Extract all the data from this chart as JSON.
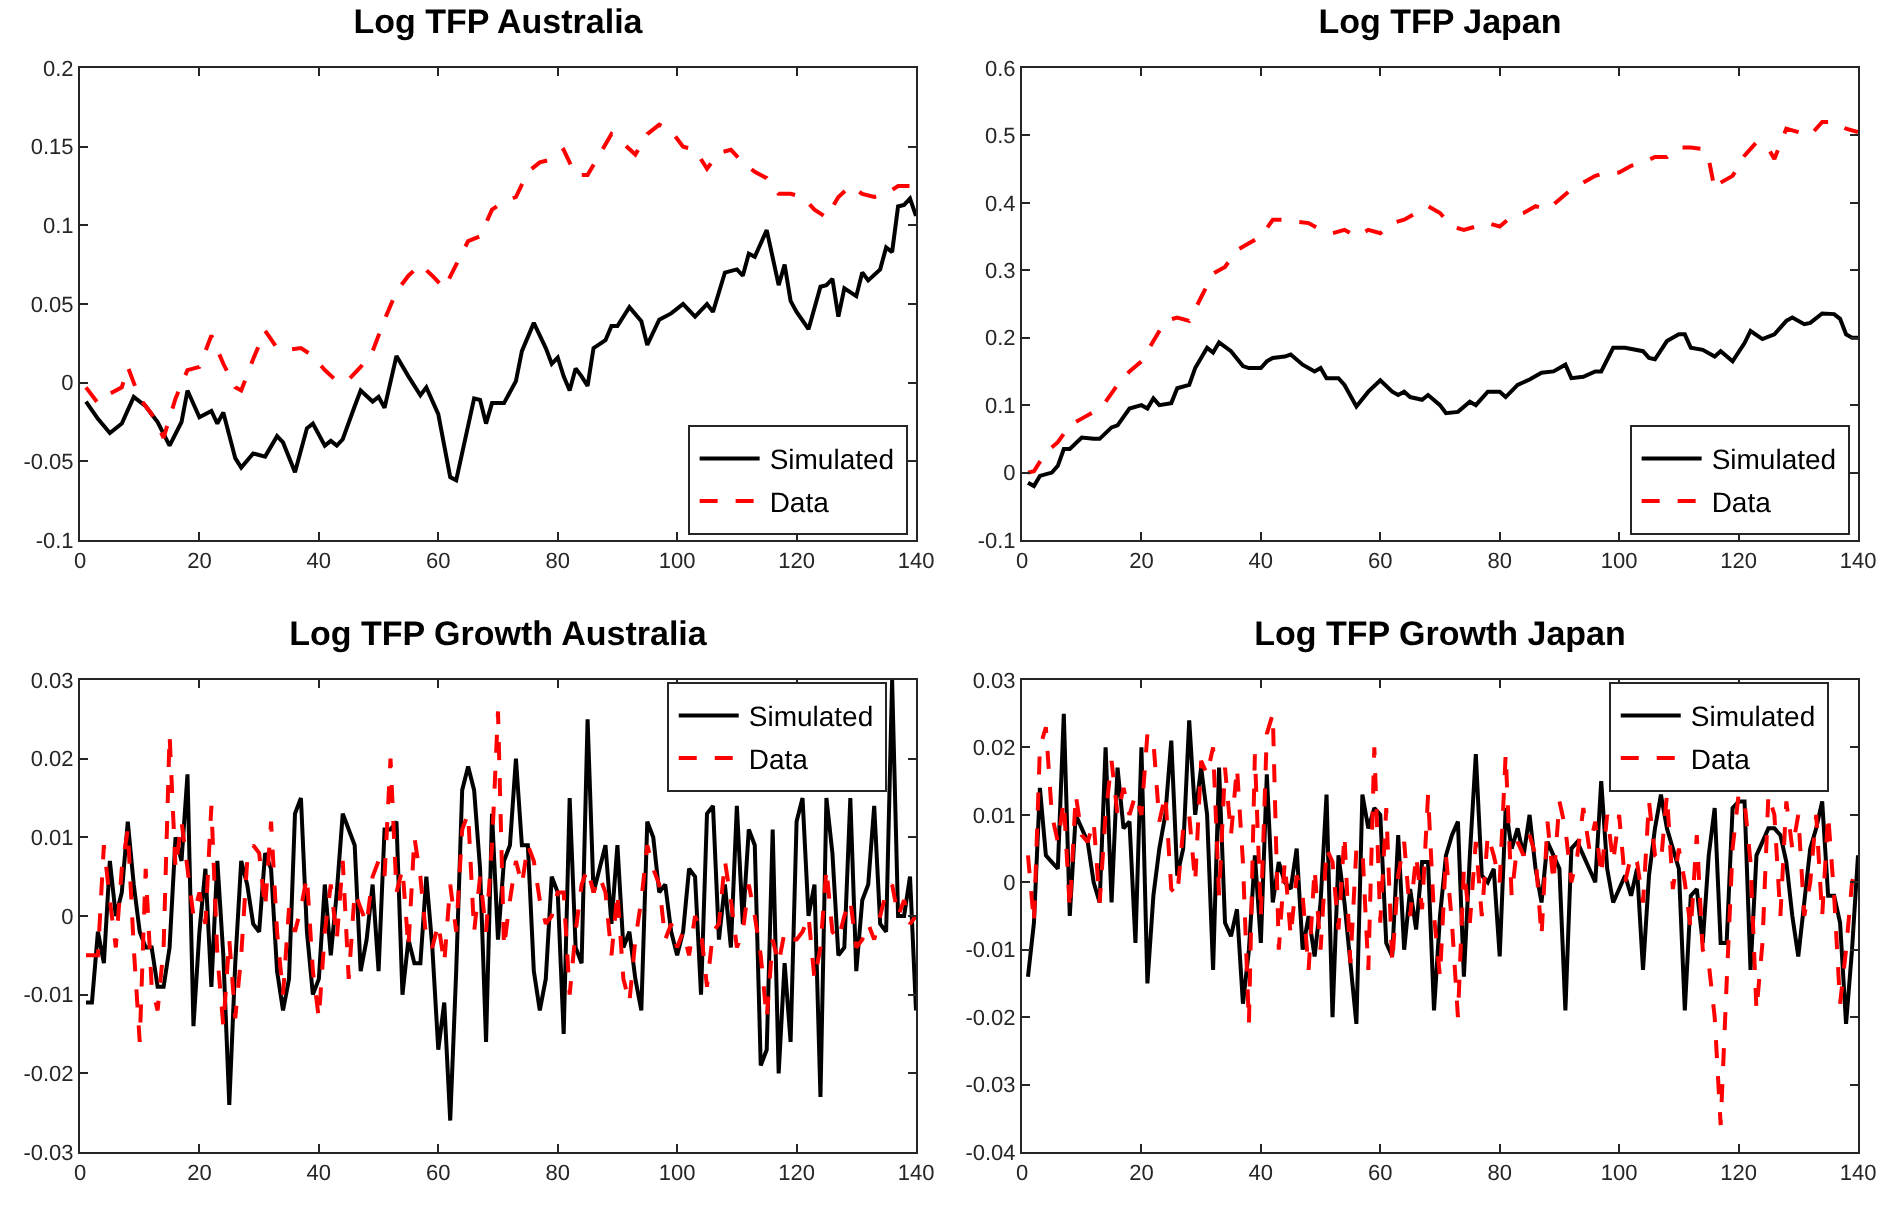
{
  "chart_data": [
    {
      "type": "line",
      "title": "Log TFP Australia",
      "xlim": [
        0,
        140
      ],
      "xticks": [
        0,
        20,
        40,
        60,
        80,
        100,
        120,
        140
      ],
      "ylim": [
        -0.1,
        0.2
      ],
      "yticks": [
        -0.1,
        -0.05,
        0,
        0.05,
        0.1,
        0.15,
        0.2
      ],
      "grid": false,
      "legend": "bottom right",
      "series": [
        {
          "name": "Simulated",
          "color": "#000000",
          "line_style": "solid",
          "x": [
            1,
            3,
            5,
            7,
            9,
            11,
            13,
            15,
            17,
            18,
            20,
            22,
            23,
            24,
            26,
            27,
            29,
            31,
            33,
            34,
            36,
            38,
            39,
            41,
            42,
            43,
            44,
            46,
            47,
            49,
            50,
            51,
            53,
            55,
            57,
            58,
            60,
            62,
            63,
            66,
            67,
            68,
            69,
            71,
            73,
            74,
            76,
            78,
            79,
            80,
            81,
            82,
            83,
            84,
            85,
            86,
            88,
            89,
            90,
            92,
            94,
            95,
            97,
            99,
            101,
            103,
            105,
            106,
            108,
            110,
            111,
            112,
            113,
            115,
            117,
            118,
            119,
            120,
            122,
            124,
            125,
            126,
            127,
            128,
            130,
            131,
            132,
            134,
            135,
            136,
            137,
            138,
            139,
            140
          ],
          "values": [
            -0.012,
            -0.023,
            -0.032,
            -0.026,
            -0.009,
            -0.015,
            -0.025,
            -0.04,
            -0.025,
            -0.005,
            -0.022,
            -0.018,
            -0.026,
            -0.019,
            -0.048,
            -0.054,
            -0.045,
            -0.047,
            -0.034,
            -0.038,
            -0.057,
            -0.029,
            -0.026,
            -0.04,
            -0.037,
            -0.04,
            -0.036,
            -0.015,
            -0.005,
            -0.012,
            -0.009,
            -0.016,
            0.017,
            0.004,
            -0.008,
            -0.003,
            -0.02,
            -0.06,
            -0.062,
            -0.01,
            -0.011,
            -0.026,
            -0.013,
            -0.013,
            0.001,
            0.02,
            0.038,
            0.022,
            0.012,
            0.016,
            0.004,
            -0.005,
            0.009,
            0.004,
            -0.002,
            0.022,
            0.027,
            0.036,
            0.036,
            0.048,
            0.039,
            0.024,
            0.04,
            0.044,
            0.05,
            0.042,
            0.05,
            0.045,
            0.07,
            0.072,
            0.068,
            0.082,
            0.08,
            0.097,
            0.062,
            0.075,
            0.052,
            0.045,
            0.034,
            0.061,
            0.062,
            0.066,
            0.042,
            0.06,
            0.055,
            0.07,
            0.065,
            0.072,
            0.086,
            0.083,
            0.112,
            0.113,
            0.117,
            0.106
          ]
        },
        {
          "name": "Data",
          "color": "#ff0000",
          "line_style": "dashed",
          "x": [
            1,
            3,
            5,
            7,
            8,
            10,
            12,
            14,
            16,
            18,
            20,
            22,
            24,
            26,
            27,
            29,
            31,
            33,
            35,
            37,
            39,
            41,
            43,
            45,
            47,
            49,
            51,
            53,
            55,
            57,
            59,
            61,
            63,
            65,
            67,
            69,
            71,
            73,
            75,
            77,
            79,
            81,
            83,
            85,
            87,
            89,
            91,
            93,
            95,
            97,
            99,
            101,
            103,
            105,
            107,
            109,
            111,
            113,
            115,
            117,
            119,
            121,
            123,
            125,
            127,
            129,
            131,
            133,
            135,
            137,
            140
          ],
          "values": [
            -0.003,
            -0.013,
            -0.007,
            -0.003,
            0.01,
            -0.01,
            -0.02,
            -0.035,
            -0.01,
            0.008,
            0.01,
            0.03,
            0.012,
            -0.003,
            -0.005,
            0.015,
            0.033,
            0.022,
            0.021,
            0.022,
            0.017,
            0.008,
            0.001,
            0.002,
            0.01,
            0.02,
            0.04,
            0.058,
            0.068,
            0.075,
            0.068,
            0.06,
            0.075,
            0.09,
            0.093,
            0.11,
            0.115,
            0.118,
            0.134,
            0.14,
            0.142,
            0.148,
            0.132,
            0.132,
            0.145,
            0.158,
            0.152,
            0.145,
            0.158,
            0.164,
            0.16,
            0.15,
            0.148,
            0.136,
            0.146,
            0.148,
            0.14,
            0.134,
            0.13,
            0.12,
            0.12,
            0.118,
            0.11,
            0.105,
            0.118,
            0.125,
            0.12,
            0.118,
            0.12,
            0.125,
            0.125
          ]
        }
      ]
    },
    {
      "type": "line",
      "title": "Log TFP Japan",
      "xlim": [
        0,
        140
      ],
      "xticks": [
        0,
        20,
        40,
        60,
        80,
        100,
        120,
        140
      ],
      "ylim": [
        -0.1,
        0.6
      ],
      "yticks": [
        -0.1,
        0,
        0.1,
        0.2,
        0.3,
        0.4,
        0.5,
        0.6
      ],
      "grid": false,
      "legend": "bottom right",
      "series": [
        {
          "name": "Simulated",
          "color": "#000000",
          "line_style": "solid",
          "x": [
            1,
            2,
            3,
            5,
            6,
            7,
            8,
            10,
            12,
            13,
            15,
            16,
            18,
            20,
            21,
            22,
            23,
            25,
            26,
            28,
            29,
            31,
            32,
            33,
            35,
            37,
            38,
            40,
            41,
            42,
            44,
            45,
            47,
            49,
            50,
            51,
            53,
            54,
            56,
            58,
            60,
            62,
            63,
            64,
            65,
            67,
            68,
            70,
            71,
            73,
            75,
            76,
            78,
            80,
            81,
            83,
            85,
            87,
            89,
            91,
            92,
            94,
            96,
            97,
            99,
            101,
            104,
            105,
            106,
            108,
            110,
            111,
            112,
            114,
            116,
            117,
            119,
            121,
            122,
            124,
            126,
            128,
            129,
            131,
            132,
            134,
            136,
            137,
            138,
            139,
            140
          ],
          "values": [
            -0.015,
            -0.02,
            -0.005,
            0.0,
            0.01,
            0.035,
            0.035,
            0.052,
            0.05,
            0.05,
            0.067,
            0.07,
            0.095,
            0.1,
            0.095,
            0.11,
            0.1,
            0.103,
            0.125,
            0.13,
            0.155,
            0.185,
            0.178,
            0.193,
            0.18,
            0.158,
            0.155,
            0.155,
            0.165,
            0.17,
            0.172,
            0.175,
            0.16,
            0.15,
            0.155,
            0.14,
            0.14,
            0.13,
            0.098,
            0.12,
            0.137,
            0.12,
            0.115,
            0.12,
            0.112,
            0.108,
            0.115,
            0.1,
            0.088,
            0.09,
            0.105,
            0.1,
            0.12,
            0.12,
            0.112,
            0.13,
            0.138,
            0.148,
            0.15,
            0.16,
            0.14,
            0.142,
            0.15,
            0.15,
            0.185,
            0.185,
            0.18,
            0.17,
            0.168,
            0.195,
            0.205,
            0.205,
            0.185,
            0.182,
            0.172,
            0.18,
            0.165,
            0.192,
            0.21,
            0.198,
            0.205,
            0.225,
            0.23,
            0.22,
            0.222,
            0.236,
            0.235,
            0.228,
            0.205,
            0.2,
            0.2
          ]
        },
        {
          "name": "Data",
          "color": "#ff0000",
          "line_style": "dashed",
          "x": [
            1,
            2,
            4,
            6,
            8,
            10,
            12,
            14,
            16,
            18,
            20,
            22,
            24,
            26,
            28,
            30,
            32,
            34,
            36,
            38,
            40,
            42,
            44,
            46,
            48,
            50,
            52,
            54,
            56,
            58,
            60,
            62,
            64,
            66,
            68,
            70,
            72,
            74,
            76,
            78,
            80,
            82,
            84,
            86,
            88,
            90,
            92,
            94,
            96,
            98,
            100,
            102,
            104,
            106,
            108,
            110,
            112,
            114,
            115,
            116,
            117,
            119,
            121,
            123,
            125,
            126,
            128,
            130,
            132,
            134,
            136,
            138,
            140
          ],
          "values": [
            0.0,
            0.002,
            0.03,
            0.045,
            0.07,
            0.08,
            0.09,
            0.105,
            0.13,
            0.15,
            0.165,
            0.195,
            0.225,
            0.23,
            0.225,
            0.26,
            0.295,
            0.305,
            0.33,
            0.34,
            0.35,
            0.375,
            0.375,
            0.372,
            0.37,
            0.36,
            0.355,
            0.36,
            0.35,
            0.36,
            0.355,
            0.37,
            0.375,
            0.385,
            0.395,
            0.385,
            0.365,
            0.36,
            0.365,
            0.37,
            0.365,
            0.38,
            0.385,
            0.395,
            0.39,
            0.405,
            0.42,
            0.43,
            0.44,
            0.445,
            0.445,
            0.455,
            0.46,
            0.468,
            0.468,
            0.482,
            0.482,
            0.48,
            0.465,
            0.42,
            0.43,
            0.44,
            0.47,
            0.49,
            0.48,
            0.465,
            0.51,
            0.505,
            0.5,
            0.52,
            0.52,
            0.51,
            0.505
          ]
        }
      ]
    },
    {
      "type": "line",
      "title": "Log TFP Growth Australia",
      "xlim": [
        0,
        140
      ],
      "xticks": [
        0,
        20,
        40,
        60,
        80,
        100,
        120,
        140
      ],
      "ylim": [
        -0.03,
        0.03
      ],
      "yticks": [
        -0.03,
        -0.02,
        -0.01,
        0,
        0.01,
        0.02,
        0.03
      ],
      "grid": false,
      "legend": "top right",
      "series": [
        {
          "name": "Simulated",
          "color": "#000000",
          "line_style": "solid",
          "x": [
            1,
            2,
            3,
            4,
            5,
            6,
            7,
            8,
            9,
            10,
            11,
            12,
            13,
            14,
            15,
            16,
            17,
            18,
            19,
            20,
            21,
            22,
            23,
            24,
            25,
            26,
            27,
            28,
            29,
            30,
            31,
            32,
            33,
            34,
            35,
            36,
            37,
            38,
            39,
            40,
            41,
            42,
            43,
            44,
            45,
            46,
            47,
            48,
            49,
            50,
            51,
            52,
            53,
            54,
            55,
            56,
            57,
            58,
            59,
            60,
            61,
            62,
            63,
            64,
            65,
            66,
            67,
            68,
            69,
            70,
            71,
            72,
            73,
            74,
            75,
            76,
            77,
            78,
            79,
            80,
            81,
            82,
            83,
            84,
            85,
            86,
            87,
            88,
            89,
            90,
            91,
            92,
            93,
            94,
            95,
            96,
            97,
            98,
            99,
            100,
            101,
            102,
            103,
            104,
            105,
            106,
            107,
            108,
            109,
            110,
            111,
            112,
            113,
            114,
            115,
            116,
            117,
            118,
            119,
            120,
            121,
            122,
            123,
            124,
            125,
            126,
            127,
            128,
            129,
            130,
            131,
            132,
            133,
            134,
            135,
            136,
            137,
            138,
            139,
            140
          ],
          "values": [
            -0.011,
            -0.011,
            -0.002,
            -0.006,
            0.007,
            0.0,
            0.003,
            0.012,
            0.004,
            -0.002,
            -0.004,
            -0.004,
            -0.009,
            -0.009,
            -0.004,
            0.01,
            0.007,
            0.018,
            -0.014,
            -0.002,
            0.006,
            -0.009,
            0.007,
            -0.005,
            -0.024,
            -0.006,
            0.007,
            0.004,
            -0.001,
            -0.002,
            0.008,
            0.006,
            -0.007,
            -0.012,
            -0.008,
            0.013,
            0.015,
            -0.002,
            -0.01,
            -0.008,
            0.004,
            -0.005,
            0.003,
            0.013,
            0.011,
            0.009,
            -0.007,
            -0.003,
            0.004,
            -0.007,
            0.011,
            0.011,
            0.012,
            -0.01,
            -0.003,
            -0.006,
            -0.006,
            0.005,
            -0.004,
            -0.017,
            -0.011,
            -0.026,
            -0.007,
            0.016,
            0.019,
            0.016,
            0.006,
            -0.016,
            0.013,
            -0.003,
            0.007,
            0.009,
            0.02,
            0.009,
            0.009,
            -0.007,
            -0.012,
            -0.008,
            0.005,
            0.003,
            -0.015,
            0.015,
            -0.004,
            -0.006,
            0.025,
            0.003,
            0.006,
            0.009,
            -0.001,
            0.009,
            -0.004,
            -0.002,
            -0.008,
            -0.012,
            0.012,
            0.01,
            0.003,
            0.004,
            -0.002,
            -0.005,
            -0.002,
            0.006,
            0.005,
            -0.01,
            0.013,
            0.014,
            -0.003,
            0.004,
            -0.004,
            0.014,
            -0.001,
            0.011,
            0.009,
            -0.019,
            -0.017,
            0.011,
            -0.02,
            -0.006,
            -0.016,
            0.012,
            0.015,
            0.0,
            0.004,
            -0.023,
            0.015,
            0.008,
            -0.005,
            -0.004,
            0.015,
            -0.007,
            0.002,
            0.004,
            0.014,
            -0.001,
            -0.002,
            0.03,
            0.0,
            0.0,
            0.005,
            -0.012
          ]
        },
        {
          "name": "Data",
          "color": "#ff0000",
          "line_style": "dashed",
          "x": [
            1,
            2,
            3,
            4,
            5,
            6,
            7,
            8,
            9,
            10,
            11,
            12,
            13,
            14,
            15,
            16,
            17,
            18,
            19,
            20,
            21,
            22,
            23,
            24,
            25,
            26,
            27,
            28,
            29,
            30,
            31,
            32,
            33,
            34,
            35,
            36,
            37,
            38,
            39,
            40,
            41,
            42,
            43,
            44,
            45,
            46,
            47,
            48,
            49,
            50,
            51,
            52,
            53,
            54,
            55,
            56,
            57,
            58,
            59,
            60,
            61,
            62,
            63,
            64,
            65,
            66,
            67,
            68,
            69,
            70,
            71,
            72,
            73,
            74,
            75,
            76,
            77,
            78,
            79,
            80,
            81,
            82,
            83,
            84,
            85,
            86,
            87,
            88,
            89,
            90,
            91,
            92,
            93,
            94,
            95,
            96,
            97,
            98,
            99,
            100,
            101,
            102,
            103,
            104,
            105,
            106,
            107,
            108,
            109,
            110,
            111,
            112,
            113,
            114,
            115,
            116,
            117,
            118,
            119,
            120,
            121,
            122,
            123,
            124,
            125,
            126,
            127,
            128,
            129,
            130,
            131,
            132,
            133,
            134,
            135,
            136,
            137,
            138,
            139,
            140
          ],
          "values": [
            -0.005,
            -0.005,
            -0.005,
            0.009,
            0.002,
            -0.004,
            0.006,
            0.011,
            -0.004,
            -0.016,
            0.006,
            -0.009,
            -0.012,
            -0.004,
            0.023,
            0.006,
            0.012,
            0.006,
            0.0,
            0.003,
            -0.001,
            0.014,
            -0.005,
            -0.014,
            -0.003,
            -0.013,
            -0.005,
            0.007,
            0.009,
            0.008,
            0.001,
            0.012,
            -0.002,
            -0.01,
            0.001,
            -0.002,
            0.001,
            0.005,
            -0.007,
            -0.013,
            -0.002,
            0.004,
            -0.003,
            0.007,
            -0.008,
            0.003,
            0.001,
            -0.001,
            0.005,
            0.007,
            0.005,
            0.02,
            0.003,
            0.006,
            -0.004,
            0.01,
            0.005,
            -0.003,
            -0.004,
            -0.001,
            -0.006,
            0.004,
            -0.002,
            0.011,
            0.013,
            -0.002,
            0.005,
            -0.002,
            0.009,
            0.026,
            -0.004,
            0.002,
            0.007,
            0.004,
            0.009,
            0.007,
            0.002,
            -0.001,
            0.0,
            0.003,
            0.003,
            -0.01,
            -0.002,
            0.004,
            0.006,
            0.003,
            0.005,
            0.003,
            -0.005,
            0.003,
            -0.008,
            -0.011,
            -0.003,
            0.002,
            0.009,
            0.006,
            0.004,
            -0.003,
            -0.001,
            -0.004,
            -0.002,
            -0.005,
            0.0,
            -0.002,
            -0.009,
            -0.002,
            -0.001,
            0.007,
            0.002,
            -0.004,
            -0.002,
            0.004,
            0.0,
            -0.005,
            -0.013,
            -0.003,
            -0.006,
            -0.002,
            -0.003,
            -0.003,
            -0.002,
            0.0,
            -0.008,
            -0.004,
            0.006,
            -0.002,
            -0.003,
            0.0,
            0.002,
            -0.004,
            -0.003,
            -0.001,
            -0.003,
            0.0,
            0.003,
            0.004,
            0.0,
            0.002,
            -0.001,
            0.0
          ]
        }
      ]
    },
    {
      "type": "line",
      "title": "Log TFP Growth Japan",
      "xlim": [
        0,
        140
      ],
      "xticks": [
        0,
        20,
        40,
        60,
        80,
        100,
        120,
        140
      ],
      "ylim": [
        -0.04,
        0.03
      ],
      "yticks": [
        -0.04,
        -0.03,
        -0.02,
        -0.01,
        0,
        0.01,
        0.02,
        0.03
      ],
      "grid": false,
      "legend": "top right",
      "series": [
        {
          "name": "Simulated",
          "color": "#000000",
          "line_style": "solid",
          "x": [
            1,
            2,
            3,
            4,
            5,
            6,
            7,
            8,
            9,
            10,
            11,
            12,
            13,
            14,
            15,
            16,
            17,
            18,
            19,
            20,
            21,
            22,
            23,
            24,
            25,
            26,
            27,
            28,
            29,
            30,
            31,
            32,
            33,
            34,
            35,
            36,
            37,
            38,
            39,
            40,
            41,
            42,
            43,
            44,
            45,
            46,
            47,
            48,
            49,
            50,
            51,
            52,
            53,
            54,
            55,
            56,
            57,
            58,
            59,
            60,
            61,
            62,
            63,
            64,
            65,
            66,
            67,
            68,
            69,
            70,
            71,
            72,
            73,
            74,
            75,
            76,
            77,
            78,
            79,
            80,
            81,
            82,
            83,
            84,
            85,
            86,
            87,
            88,
            89,
            90,
            91,
            92,
            93,
            94,
            95,
            96,
            97,
            98,
            99,
            100,
            101,
            102,
            103,
            104,
            105,
            106,
            107,
            108,
            109,
            110,
            111,
            112,
            113,
            114,
            115,
            116,
            117,
            118,
            119,
            120,
            121,
            122,
            123,
            124,
            125,
            126,
            127,
            128,
            129,
            130,
            131,
            132,
            133,
            134,
            135,
            136,
            137,
            138,
            139,
            140
          ],
          "values": [
            -0.014,
            -0.006,
            0.014,
            0.004,
            0.003,
            0.002,
            0.025,
            -0.005,
            0.01,
            0.008,
            0.006,
            0.0,
            -0.003,
            0.02,
            -0.003,
            0.017,
            0.008,
            0.009,
            -0.009,
            0.02,
            -0.015,
            -0.002,
            0.005,
            0.01,
            0.021,
            0.001,
            0.005,
            0.024,
            0.01,
            0.017,
            0.01,
            -0.013,
            0.017,
            -0.006,
            -0.008,
            -0.004,
            -0.018,
            -0.01,
            0.004,
            -0.009,
            0.016,
            -0.003,
            0.003,
            0.0,
            -0.001,
            0.005,
            -0.01,
            -0.005,
            -0.011,
            -0.003,
            0.013,
            -0.02,
            0.004,
            -0.003,
            -0.012,
            -0.021,
            0.013,
            0.008,
            0.011,
            0.01,
            -0.009,
            -0.011,
            0.007,
            -0.01,
            -0.001,
            -0.007,
            0.003,
            0.003,
            -0.019,
            -0.005,
            0.004,
            0.007,
            0.009,
            -0.014,
            0.004,
            0.019,
            0.001,
            0.0,
            0.002,
            -0.011,
            0.011,
            0.005,
            0.008,
            0.004,
            0.01,
            0.002,
            -0.003,
            0.006,
            0.004,
            0.002,
            -0.019,
            0.005,
            0.006,
            0.004,
            0.002,
            0.0,
            0.015,
            0.002,
            -0.003,
            -0.001,
            0.001,
            -0.002,
            0.002,
            -0.013,
            0.001,
            0.008,
            0.013,
            0.008,
            0.005,
            0.002,
            -0.019,
            -0.002,
            -0.001,
            -0.009,
            0.004,
            0.011,
            -0.009,
            -0.009,
            0.011,
            0.012,
            0.012,
            -0.013,
            0.004,
            0.006,
            0.008,
            0.008,
            0.007,
            0.003,
            -0.005,
            -0.011,
            -0.003,
            0.005,
            0.008,
            0.012,
            -0.002,
            -0.002,
            -0.006,
            -0.021,
            -0.01,
            0.004
          ]
        },
        {
          "name": "Data",
          "color": "#ff0000",
          "line_style": "dashed",
          "x": [
            1,
            2,
            3,
            4,
            5,
            6,
            7,
            8,
            9,
            10,
            11,
            12,
            13,
            14,
            15,
            16,
            17,
            18,
            19,
            20,
            21,
            22,
            23,
            24,
            25,
            26,
            27,
            28,
            29,
            30,
            31,
            32,
            33,
            34,
            35,
            36,
            37,
            38,
            39,
            40,
            41,
            42,
            43,
            44,
            45,
            46,
            47,
            48,
            49,
            50,
            51,
            52,
            53,
            54,
            55,
            56,
            57,
            58,
            59,
            60,
            61,
            62,
            63,
            64,
            65,
            66,
            67,
            68,
            69,
            70,
            71,
            72,
            73,
            74,
            75,
            76,
            77,
            78,
            79,
            80,
            81,
            82,
            83,
            84,
            85,
            86,
            87,
            88,
            89,
            90,
            91,
            92,
            93,
            94,
            95,
            96,
            97,
            98,
            99,
            100,
            101,
            102,
            103,
            104,
            105,
            106,
            107,
            108,
            109,
            110,
            111,
            112,
            113,
            114,
            115,
            116,
            117,
            118,
            119,
            120,
            121,
            122,
            123,
            124,
            125,
            126,
            127,
            128,
            129,
            130,
            131,
            132,
            133,
            134,
            135,
            136,
            137,
            138,
            139,
            140
          ],
          "values": [
            0.004,
            -0.006,
            0.02,
            0.023,
            0.01,
            0.006,
            0.012,
            -0.004,
            0.013,
            0.007,
            0.006,
            0.009,
            -0.003,
            0.01,
            0.018,
            0.01,
            0.014,
            0.01,
            0.013,
            0.01,
            0.022,
            0.021,
            0.009,
            0.013,
            -0.001,
            -0.002,
            0.008,
            0.01,
            0.0,
            0.018,
            0.016,
            0.02,
            -0.002,
            0.017,
            0.007,
            0.017,
            0.003,
            -0.021,
            0.019,
            -0.005,
            0.022,
            0.025,
            -0.01,
            0.003,
            -0.008,
            0.001,
            -0.002,
            -0.013,
            0.002,
            -0.01,
            0.005,
            0.003,
            -0.007,
            0.007,
            -0.012,
            0.005,
            0.005,
            -0.013,
            0.02,
            -0.006,
            0.011,
            -0.012,
            0.001,
            0.006,
            -0.005,
            0.004,
            -0.004,
            0.013,
            -0.005,
            -0.014,
            0.004,
            -0.006,
            -0.02,
            0.002,
            -0.006,
            0.006,
            -0.005,
            0.007,
            0.004,
            0.0,
            0.019,
            -0.002,
            0.006,
            0.004,
            0.007,
            0.004,
            -0.008,
            0.009,
            0.0,
            0.012,
            0.008,
            0.0,
            0.004,
            0.011,
            0.005,
            0.009,
            0.001,
            0.01,
            0.003,
            0.01,
            0.0,
            0.004,
            0.003,
            -0.003,
            0.012,
            0.004,
            0.003,
            0.013,
            -0.001,
            0.005,
            0.0,
            -0.007,
            0.007,
            -0.01,
            -0.012,
            -0.02,
            -0.036,
            -0.015,
            0.005,
            0.013,
            0.012,
            0.003,
            -0.019,
            -0.009,
            0.013,
            0.01,
            -0.005,
            0.012,
            0.005,
            0.01,
            -0.005,
            0.0,
            0.01,
            -0.005,
            0.01,
            -0.002,
            -0.018,
            -0.01,
            0.0,
            0.003
          ]
        }
      ]
    }
  ]
}
